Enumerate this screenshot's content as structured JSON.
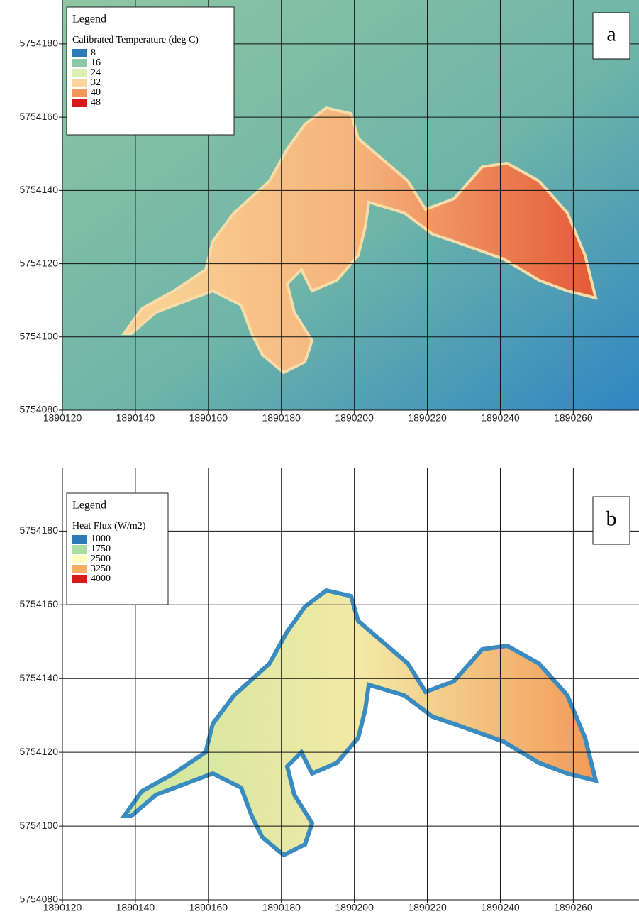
{
  "maps": [
    {
      "label": "a",
      "legend_title": "Legend",
      "legend_subtitle": "Calibrated Temperature (deg C)",
      "legend": [
        {
          "value": 8,
          "color": "#2c7bb6"
        },
        {
          "value": 16,
          "color": "#8cc8a6"
        },
        {
          "value": 24,
          "color": "#dcf0b4"
        },
        {
          "value": 32,
          "color": "#fdd49e"
        },
        {
          "value": 40,
          "color": "#f4965a"
        },
        {
          "value": 48,
          "color": "#d7191c"
        }
      ],
      "xlim": [
        1890120,
        1890278
      ],
      "ylim": [
        5754080,
        5754192
      ],
      "xticks": [
        1890120,
        1890140,
        1890160,
        1890180,
        1890200,
        1890220,
        1890240,
        1890260
      ],
      "yticks": [
        5754080,
        5754100,
        5754120,
        5754140,
        5754160,
        5754180
      ]
    },
    {
      "label": "b",
      "legend_title": "Legend",
      "legend_subtitle": "Heat Flux (W/m2)",
      "legend": [
        {
          "value": 1000,
          "color": "#2c7bb6"
        },
        {
          "value": 1750,
          "color": "#abdda4"
        },
        {
          "value": 2500,
          "color": "#ffffbf"
        },
        {
          "value": 3250,
          "color": "#fdae61"
        },
        {
          "value": 4000,
          "color": "#d7191c"
        }
      ],
      "xlim": [
        1890120,
        1890278
      ],
      "ylim": [
        5754080,
        5754197
      ],
      "xticks": [
        1890120,
        1890140,
        1890160,
        1890180,
        1890200,
        1890220,
        1890240,
        1890260
      ],
      "yticks": [
        5754080,
        5754100,
        5754120,
        5754140,
        5754160,
        5754180
      ]
    }
  ]
}
